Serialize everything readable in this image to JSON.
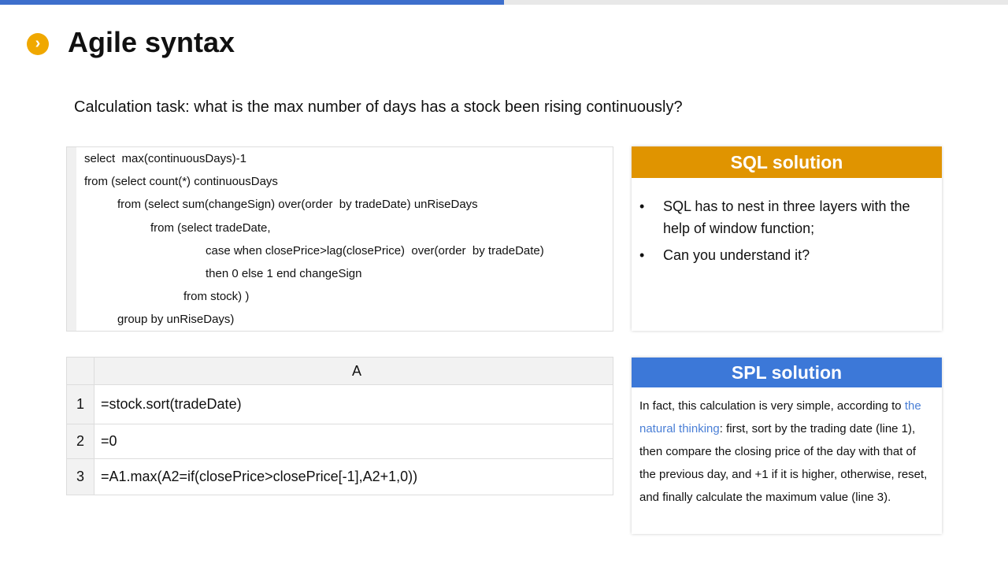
{
  "progress_percent": 50,
  "colors": {
    "accent_blue": "#3c78d8",
    "accent_orange": "#e09400",
    "bullet": "#f0a800"
  },
  "title": "Agile syntax",
  "task": "Calculation task: what is the max number of days has a stock been rising continuously?",
  "sql_code": [
    "select  max(continuousDays)-1",
    "from (select count(*) continuousDays",
    "from (select sum(changeSign) over(order  by tradeDate) unRiseDays",
    "from (select tradeDate,",
    "case when closePrice>lag(closePrice)  over(order  by tradeDate)",
    "then 0 else 1 end changeSign",
    "from stock) )",
    "group by unRiseDays)"
  ],
  "grid": {
    "column": "A",
    "rows": [
      {
        "num": "1",
        "cell": "=stock.sort(tradeDate)"
      },
      {
        "num": "2",
        "cell": "=0"
      },
      {
        "num": "3",
        "cell": "=A1.max(A2=if(closePrice>closePrice[-1],A2+1,0))"
      }
    ]
  },
  "sql_card": {
    "title": "SQL solution",
    "bullets": [
      "SQL has to nest in three layers with the help of window function;",
      "Can you understand it?"
    ]
  },
  "spl_card": {
    "title": "SPL solution",
    "text_before": "In fact, this calculation is very simple, according to ",
    "link": "the natural thinking",
    "text_after": ": first, sort by the trading date (line 1), then compare the closing price of the day with that of the previous day, and +1 if it is higher, otherwise, reset, and finally calculate the maximum value (line 3)."
  }
}
